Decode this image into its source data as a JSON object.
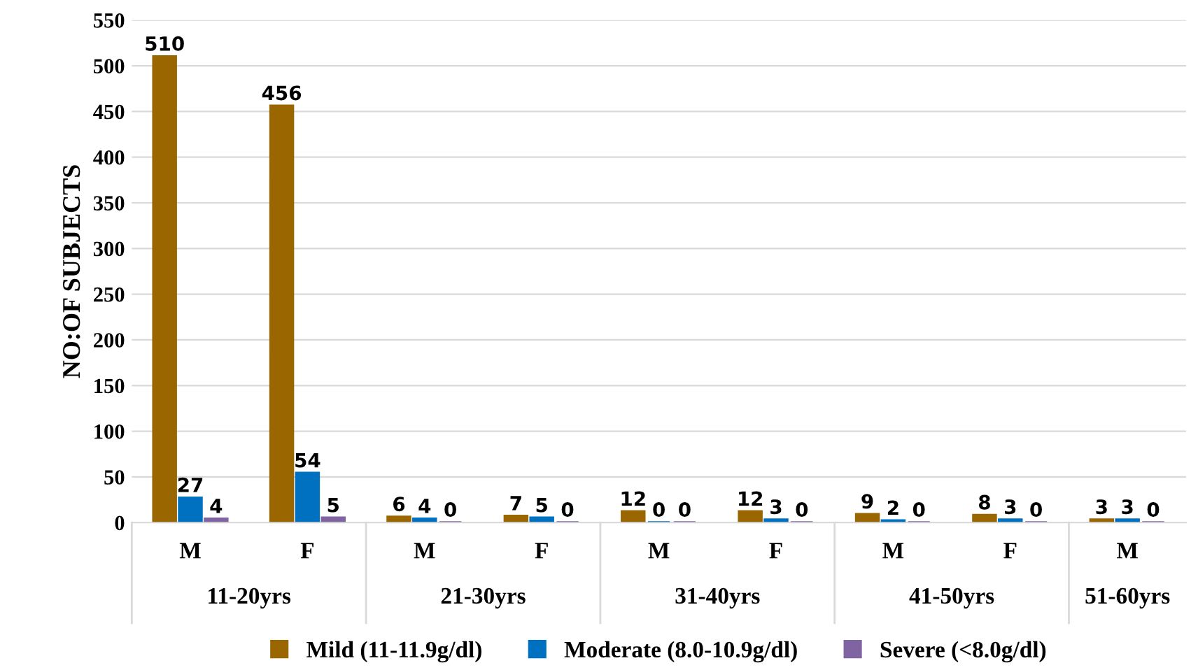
{
  "chart_data": {
    "type": "bar",
    "ylabel": "NO:OF SUBJECTS",
    "categories": [
      "M",
      "F",
      "M",
      "F",
      "M",
      "F",
      "M",
      "F",
      "M"
    ],
    "annotations": [
      "11-20yrs",
      "21-30yrs",
      "31-40yrs",
      "41-50yrs",
      "51-60yrs"
    ],
    "series": [
      {
        "name": "Mild (11-11.9g/dl)",
        "color": "#996600",
        "values": [
          510,
          456,
          6,
          7,
          12,
          12,
          9,
          8,
          3
        ]
      },
      {
        "name": "Moderate (8.0-10.9g/dl)",
        "color": "#0070c0",
        "values": [
          27,
          54,
          4,
          5,
          0,
          3,
          2,
          3,
          3
        ]
      },
      {
        "name": "Severe (<8.0g/dl)",
        "color": "#8064a2",
        "values": [
          4,
          5,
          0,
          0,
          0,
          0,
          0,
          0,
          0
        ]
      }
    ],
    "ylim": [
      0,
      550
    ],
    "yticks": [
      0,
      50,
      100,
      150,
      200,
      250,
      300,
      350,
      400,
      450,
      500,
      550
    ],
    "grid": "y",
    "legend": "bottom",
    "data_labels": true
  }
}
